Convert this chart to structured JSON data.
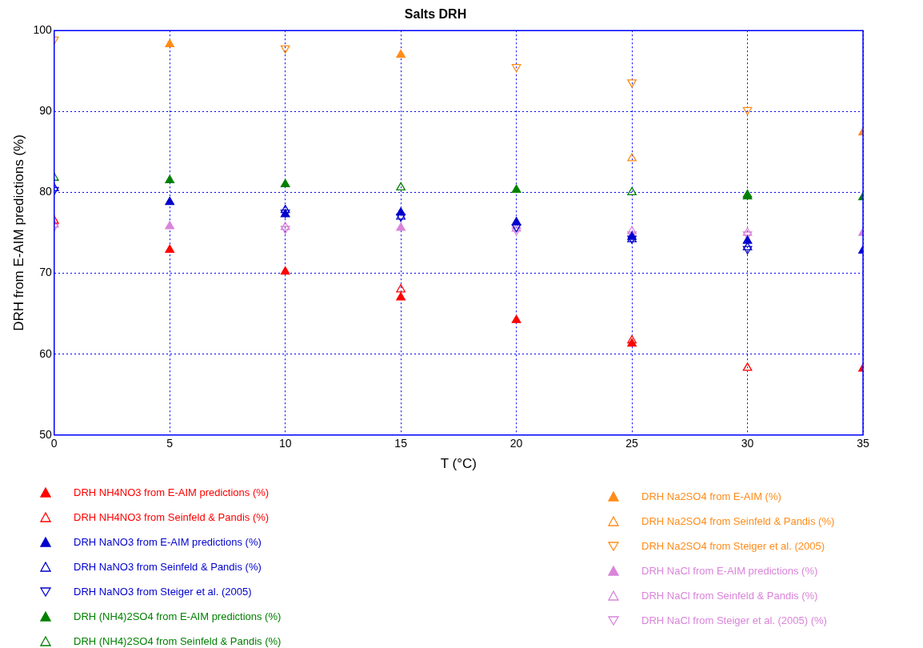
{
  "chart_data": {
    "type": "scatter",
    "title": "Salts DRH",
    "xlabel": "T (°C)",
    "ylabel": "DRH from E-AIM predictions (%)",
    "x": [
      0,
      5,
      10,
      15,
      20,
      25,
      30,
      35
    ],
    "xlim": [
      0,
      35
    ],
    "xticks": [
      0,
      5,
      10,
      15,
      20,
      25,
      30,
      35
    ],
    "ylim": [
      50,
      100
    ],
    "yticks": [
      50,
      60,
      70,
      80,
      90,
      100
    ],
    "grid": true,
    "legend": "bottom",
    "series": [
      {
        "name": "DRH NH4NO3 from E-AIM predictions (%)",
        "color": "#ff0000",
        "marker": "triangle",
        "values": [
          null,
          72.9,
          70.2,
          67.0,
          64.2,
          61.3,
          null,
          58.2
        ]
      },
      {
        "name": "DRH NH4NO3 from Seinfeld & Pandis (%)",
        "color": "#ff0000",
        "marker": "triangle-open",
        "values": [
          76.5,
          null,
          null,
          68.0,
          null,
          61.7,
          58.3,
          null
        ]
      },
      {
        "name": "DRH NaNO3 from E-AIM predictions (%)",
        "color": "#0000cc",
        "marker": "triangle",
        "values": [
          null,
          78.8,
          77.3,
          77.5,
          76.3,
          74.5,
          74.0,
          72.8
        ]
      },
      {
        "name": "DRH NaNO3 from Seinfeld & Pandis (%)",
        "color": "#0000cc",
        "marker": "triangle-open",
        "values": [
          80.5,
          null,
          77.8,
          77.0,
          null,
          74.2,
          73.2,
          null
        ]
      },
      {
        "name": "DRH NaNO3 from Steiger et al. (2005)",
        "color": "#0000cc",
        "marker": "triangle-down-open",
        "values": [
          80.3,
          null,
          77.5,
          77.0,
          75.7,
          74.3,
          73.0,
          null
        ]
      },
      {
        "name": "DRH (NH4)2SO4 from E-AIM predictions (%)",
        "color": "#008000",
        "marker": "triangle",
        "values": [
          null,
          81.5,
          81.0,
          null,
          80.3,
          null,
          79.5,
          79.4
        ]
      },
      {
        "name": "DRH (NH4)2SO4 from Seinfeld & Pandis (%)",
        "color": "#008000",
        "marker": "triangle-open",
        "values": [
          81.8,
          null,
          null,
          80.6,
          null,
          80.0,
          79.7,
          null
        ]
      },
      {
        "name": "DRH Na2SO4 from E-AIM (%)",
        "color": "#ff8c1a",
        "marker": "triangle",
        "values": [
          null,
          98.3,
          null,
          97.0,
          null,
          null,
          null,
          87.4
        ]
      },
      {
        "name": "DRH Na2SO4 from Seinfeld & Pandis (%)",
        "color": "#ff8c1a",
        "marker": "triangle-open",
        "values": [
          null,
          null,
          null,
          null,
          null,
          84.2,
          null,
          null
        ]
      },
      {
        "name": "DRH Na2SO4 from Steiger et al. (2005)",
        "color": "#ff8c1a",
        "marker": "triangle-down-open",
        "values": [
          98.9,
          null,
          97.8,
          null,
          95.5,
          93.6,
          90.2,
          null
        ]
      },
      {
        "name": "DRH NaCl from E-AIM predictions (%)",
        "color": "#da84da",
        "marker": "triangle",
        "values": [
          null,
          75.8,
          null,
          75.6,
          null,
          null,
          null,
          75.0
        ]
      },
      {
        "name": "DRH NaCl from Seinfeld & Pandis (%)",
        "color": "#da84da",
        "marker": "triangle-open",
        "values": [
          76.0,
          null,
          75.7,
          null,
          75.5,
          75.2,
          75.0,
          null
        ]
      },
      {
        "name": "DRH NaCl from Steiger et al. (2005) (%)",
        "color": "#da84da",
        "marker": "triangle-down-open",
        "values": [
          75.8,
          null,
          75.5,
          null,
          75.3,
          74.8,
          74.8,
          null
        ]
      }
    ]
  }
}
